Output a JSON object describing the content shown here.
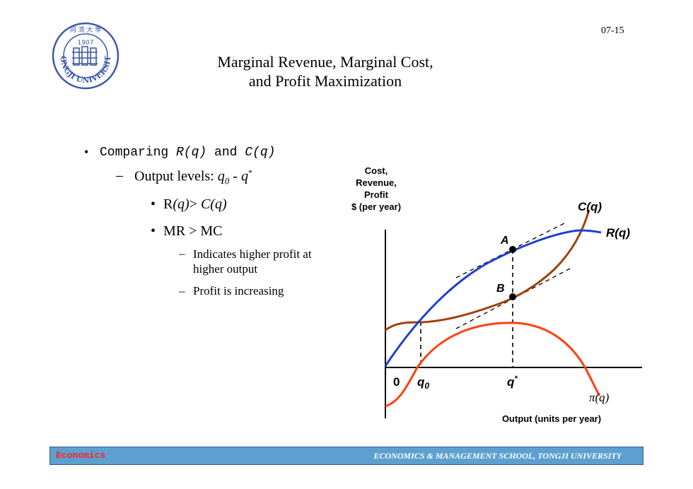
{
  "slide_number": "07-15",
  "title": {
    "line1": "Marginal Revenue, Marginal Cost,",
    "line2": "and Profit Maximization"
  },
  "logo": {
    "year": "1907",
    "ring_text": "TONGJI UNIVERSITY",
    "top_glyphs": "同 濟 大 學"
  },
  "bullets": {
    "l1": {
      "prefix": "Comparing ",
      "r": "R(q)",
      "mid": " and ",
      "c": "C(q)"
    },
    "l2": {
      "prefix": "Output levels: ",
      "q0": "q",
      "q0_sub": "0",
      "dash": " - ",
      "qstar": "q",
      "qstar_sup": "*"
    },
    "l3a": {
      "r": "R",
      "rq": "(q)",
      "gt": "> ",
      "c": "C(q)"
    },
    "l3b": "MR > MC",
    "l4a_line1": "Indicates higher profit at",
    "l4a_line2": "higher output",
    "l4b": "Profit is increasing"
  },
  "diagram": {
    "y_axis_label": [
      "Cost,",
      "Revenue,",
      "Profit",
      "$ (per year)"
    ],
    "x_axis_label": "Output (units per year)",
    "origin": "0",
    "q0": "q",
    "q0_sub": "0",
    "qstar": "q",
    "qstar_sup": "*",
    "point_a": "A",
    "point_b": "B",
    "cost_label": "C(q)",
    "revenue_label": "R(q)",
    "profit_label": "π(q)",
    "colors": {
      "revenue": "#1f3fcf",
      "cost": "#a0400c",
      "profit": "#ff4010"
    }
  },
  "footer": {
    "left": "Economics",
    "right": "ECONOMICS & MANAGEMENT SCHOOL, TONGJI UNIVERSITY"
  }
}
